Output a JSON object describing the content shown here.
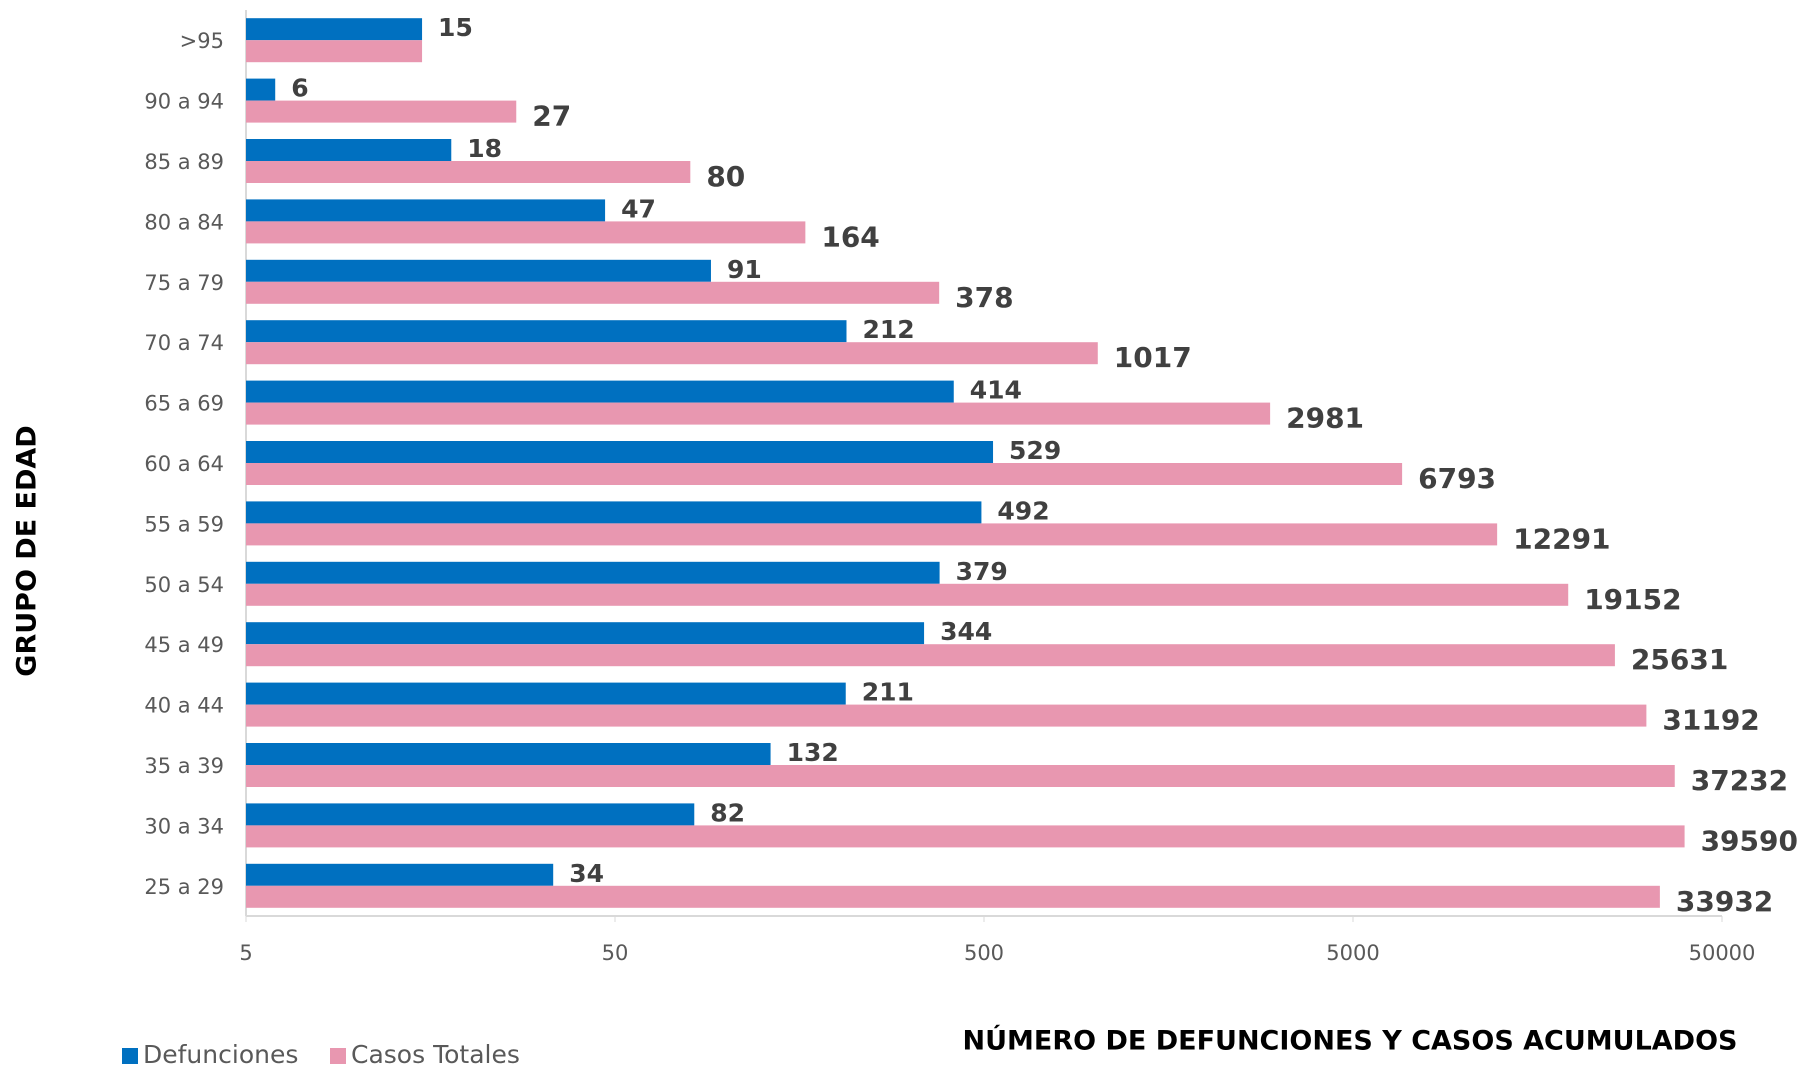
{
  "chart_data": {
    "type": "bar",
    "orientation": "horizontal",
    "categories": [
      ">95",
      "90 a 94",
      "85 a 89",
      "80 a 84",
      "75 a 79",
      "70 a 74",
      "65 a 69",
      "60 a 64",
      "55 a 59",
      "50 a 54",
      "45 a 49",
      "40 a 44",
      "35 a 39",
      "30 a 34",
      "25 a 29"
    ],
    "series": [
      {
        "name": "Defunciones",
        "color": "#0070c0",
        "values": [
          15,
          6,
          18,
          47,
          91,
          212,
          414,
          529,
          492,
          379,
          344,
          211,
          132,
          82,
          34
        ]
      },
      {
        "name": "Casos Totales",
        "color": "#e897b0",
        "values": [
          15,
          27,
          80,
          164,
          378,
          1017,
          2981,
          6793,
          12291,
          19152,
          25631,
          31192,
          37232,
          39590,
          33932
        ]
      }
    ],
    "xlim": [
      5,
      50000
    ],
    "xticks": [
      5,
      50,
      500,
      5000,
      50000
    ],
    "log_x": true,
    "xlabel": "NÚMERO DE DEFUNCIONES Y CASOS ACUMULADOS",
    "ylabel": "GRUPO DE EDAD",
    "legend": "bottom-left"
  }
}
